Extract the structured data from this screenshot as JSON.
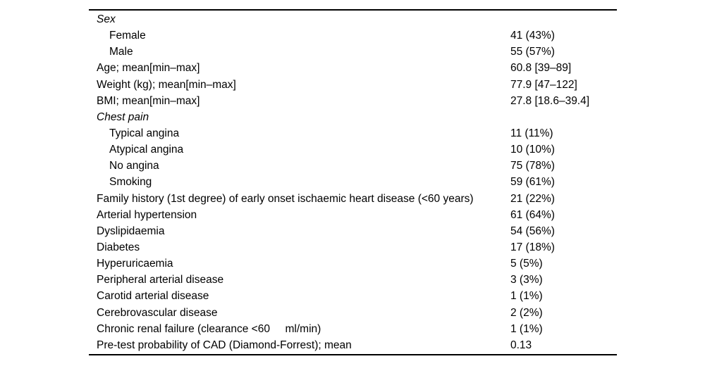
{
  "colors": {
    "background": "#ffffff",
    "text": "#000000",
    "rule": "#000000"
  },
  "table": {
    "rows": [
      {
        "type": "section",
        "label": "Sex",
        "value": ""
      },
      {
        "type": "sub",
        "label": "Female",
        "value": "41 (43%)"
      },
      {
        "type": "sub",
        "label": "Male",
        "value": "55 (57%)"
      },
      {
        "type": "main",
        "label": "Age; mean[min–max]",
        "value": "60.8 [39–89]"
      },
      {
        "type": "main",
        "label": "Weight (kg); mean[min–max]",
        "value": "77.9 [47–122]"
      },
      {
        "type": "main",
        "label": "BMI; mean[min–max]",
        "value": "27.8 [18.6–39.4]"
      },
      {
        "type": "section",
        "label": "Chest pain",
        "value": ""
      },
      {
        "type": "sub",
        "label": "Typical angina",
        "value": "11 (11%)"
      },
      {
        "type": "sub",
        "label": "Atypical angina",
        "value": "10 (10%)"
      },
      {
        "type": "sub",
        "label": "No angina",
        "value": "75 (78%)"
      },
      {
        "type": "sub",
        "label": "Smoking",
        "value": "59 (61%)"
      },
      {
        "type": "main",
        "label": "Family history (1st degree) of early onset ischaemic heart disease (<60 years)",
        "value": "21 (22%)"
      },
      {
        "type": "main",
        "label": "Arterial hypertension",
        "value": "61 (64%)"
      },
      {
        "type": "main",
        "label": "Dyslipidaemia",
        "value": "54 (56%)"
      },
      {
        "type": "main",
        "label": "Diabetes",
        "value": "17 (18%)"
      },
      {
        "type": "main",
        "label": "Hyperuricaemia",
        "value": "5 (5%)"
      },
      {
        "type": "main",
        "label": "Peripheral arterial disease",
        "value": "3 (3%)"
      },
      {
        "type": "main",
        "label": "Carotid arterial disease",
        "value": "1 (1%)"
      },
      {
        "type": "main",
        "label": "Cerebrovascular disease",
        "value": "2 (2%)"
      },
      {
        "type": "main",
        "label": "Chronic renal failure (clearance <60     ml/min)",
        "value": "1 (1%)"
      },
      {
        "type": "main",
        "label": "Pre-test probability of CAD (Diamond-Forrest); mean",
        "value": "0.13"
      }
    ]
  }
}
